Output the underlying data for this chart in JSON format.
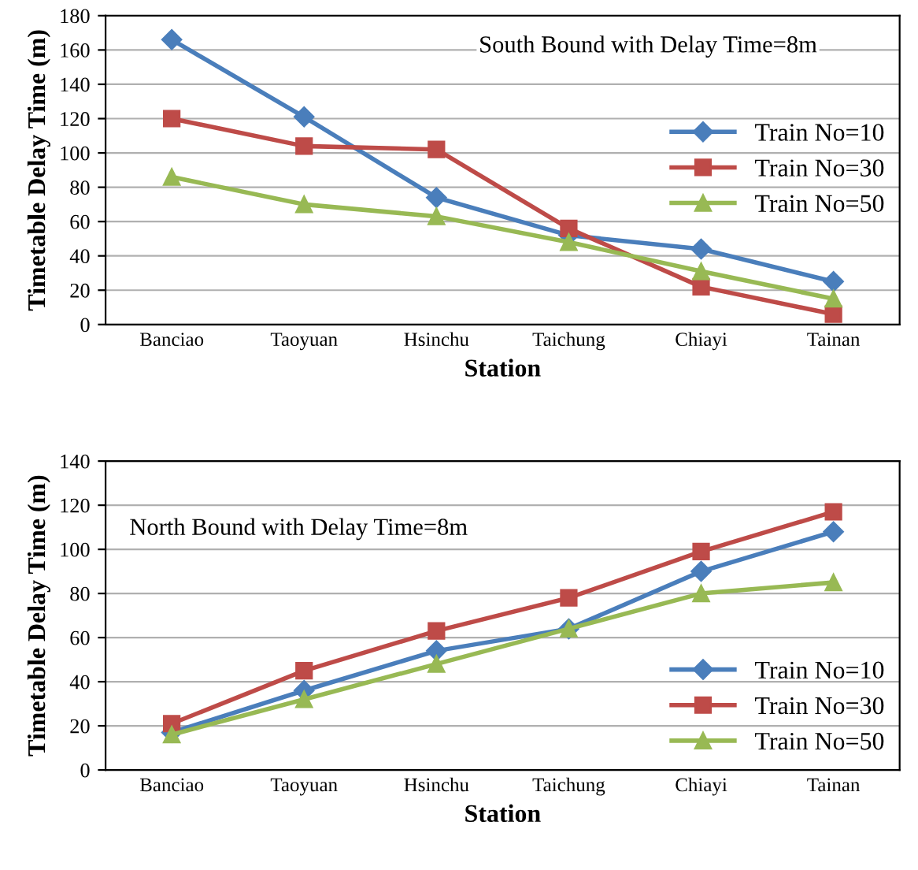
{
  "chart_data": [
    {
      "type": "line",
      "title": "South Bound with Delay Time=8m",
      "xlabel": "Station",
      "ylabel": "Timetable Delay Time (m)",
      "categories": [
        "Banciao",
        "Taoyuan",
        "Hsinchu",
        "Taichung",
        "Chiayi",
        "Tainan"
      ],
      "series": [
        {
          "name": "Train No=10",
          "color": "#4a7ebb",
          "marker": "diamond",
          "values": [
            166,
            121,
            74,
            52,
            44,
            25
          ]
        },
        {
          "name": "Train No=30",
          "color": "#be4b48",
          "marker": "square",
          "values": [
            120,
            104,
            102,
            56,
            22,
            6
          ]
        },
        {
          "name": "Train No=50",
          "color": "#98b954",
          "marker": "triangle",
          "values": [
            86,
            70,
            63,
            48,
            31,
            15
          ]
        }
      ],
      "ylim": [
        0,
        180
      ],
      "yticks": [
        0,
        20,
        40,
        60,
        80,
        100,
        120,
        140,
        160,
        180
      ],
      "grid": "y",
      "legend": "right"
    },
    {
      "type": "line",
      "title": "North Bound with Delay Time=8m",
      "xlabel": "Station",
      "ylabel": "Timetable Delay Time (m)",
      "categories": [
        "Banciao",
        "Taoyuan",
        "Hsinchu",
        "Taichung",
        "Chiayi",
        "Tainan"
      ],
      "series": [
        {
          "name": "Train No=10",
          "color": "#4a7ebb",
          "marker": "diamond",
          "values": [
            17,
            36,
            54,
            64,
            90,
            108
          ]
        },
        {
          "name": "Train No=30",
          "color": "#be4b48",
          "marker": "square",
          "values": [
            21,
            45,
            63,
            78,
            99,
            117
          ]
        },
        {
          "name": "Train No=50",
          "color": "#98b954",
          "marker": "triangle",
          "values": [
            16,
            32,
            48,
            64,
            80,
            85
          ]
        }
      ],
      "ylim": [
        0,
        140
      ],
      "yticks": [
        0,
        20,
        40,
        60,
        80,
        100,
        120,
        140
      ],
      "grid": "y",
      "legend": "bottom right"
    }
  ]
}
